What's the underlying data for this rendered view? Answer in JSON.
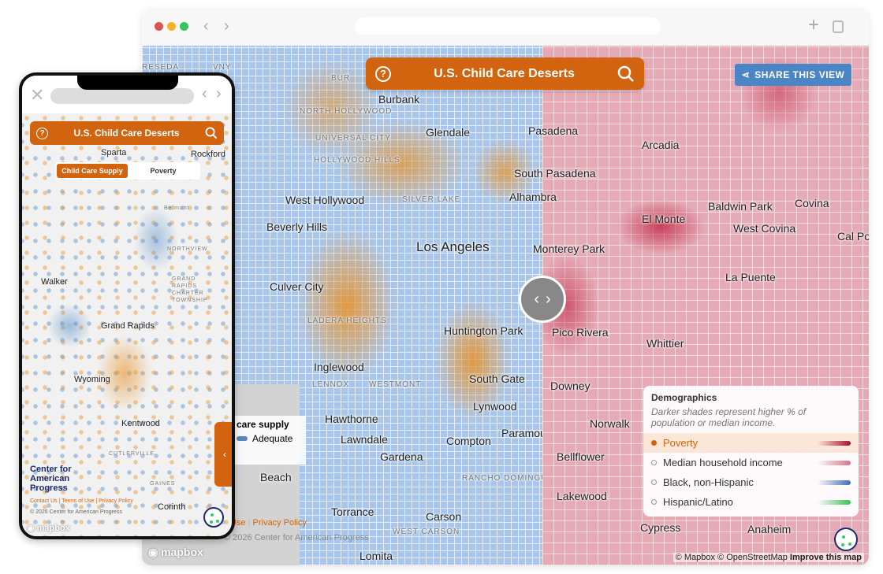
{
  "browser": {
    "nav_back": "‹",
    "nav_forward": "›",
    "new_tab": "+",
    "traffic_colors": [
      "#d9534f",
      "#f0b429",
      "#3cc25a"
    ]
  },
  "desktop": {
    "header": {
      "title": "U.S. Child Care Deserts",
      "help_icon": "question-circle-icon",
      "search_icon": "search-icon"
    },
    "share_label": "SHARE THIS VIEW",
    "slider": {
      "left": "‹",
      "right": "›"
    },
    "left_labels": [
      "RESEDA",
      "VNY",
      "BUR",
      "Burbank",
      "NORTH HOLLYWOOD",
      "UNIVERSAL CITY",
      "HOLLYWOOD HILLS",
      "Glendale",
      "West Hollywood",
      "SILVER LAKE",
      "Beverly Hills",
      "Los Angeles",
      "Culver City",
      "LADERA HEIGHTS",
      "Huntington Park",
      "Inglewood",
      "LENNOX",
      "WESTMONT",
      "South Gate",
      "Lynwood",
      "Hawthorne",
      "Lawndale",
      "Compton",
      "Gardena",
      "RANCHO DOMINGUEZ",
      "Torrance",
      "Carson",
      "WEST CARSON",
      "Lomita",
      "Beach",
      "Paramount"
    ],
    "right_labels": [
      "Pasadena",
      "Arcadia",
      "South Pasadena",
      "Alhambra",
      "El Monte",
      "Baldwin Park",
      "Covina",
      "West Covina",
      "Monterey Park",
      "La Puente",
      "Pico Rivera",
      "Whittier",
      "Downey",
      "Norwalk",
      "Bellflower",
      "Lakewood",
      "Cypress",
      "Anaheim",
      "Cal Poly"
    ],
    "left_legend": {
      "title": "care supply",
      "item": "Adequate"
    },
    "footer_links": [
      "Use",
      "Privacy Policy"
    ],
    "copyright": "© 2026 Center for American Progress",
    "mapbox": "mapbox",
    "legend": {
      "title": "Demographics",
      "subtitle": "Darker shades represent higher % of population or median income.",
      "items": [
        {
          "label": "Poverty",
          "active": true,
          "ramp": "#a3112d"
        },
        {
          "label": "Median household income",
          "active": false,
          "ramp": "#d8738a"
        },
        {
          "label": "Black, non-Hispanic",
          "active": false,
          "ramp": "#3f6fb0"
        },
        {
          "label": "Hispanic/Latino",
          "active": false,
          "ramp": "#3cc25a"
        }
      ]
    },
    "attribution": {
      "mapbox": "© Mapbox",
      "osm": "© OpenStreetMap",
      "improve": "Improve this map"
    }
  },
  "phone": {
    "header": {
      "title": "U.S. Child Care Deserts"
    },
    "toggle": [
      "Child Care Supply",
      "Poverty"
    ],
    "labels": [
      "Sparta",
      "Rockford",
      "Belmont",
      "NORTHVIEW",
      "Walker",
      "GRAND RAPIDS CHARTER TOWNSHIP",
      "Grand Rapids",
      "Wyoming",
      "Kentwood",
      "CUTLERVILLE",
      "GAINES",
      "Corinth"
    ],
    "logo": "Center for American Progress",
    "footer_links": [
      "Contact Us",
      "Terms of Use",
      "Privacy Policy"
    ],
    "copyright": "© 2026 Center for American Progress",
    "mapbox": "mapbox",
    "panel_tab": "‹"
  },
  "colors": {
    "accent": "#d2640f",
    "share": "#4a86c5",
    "adequate": "#a9c6ea",
    "desert": "#e89228",
    "poverty": "#a3112d"
  }
}
